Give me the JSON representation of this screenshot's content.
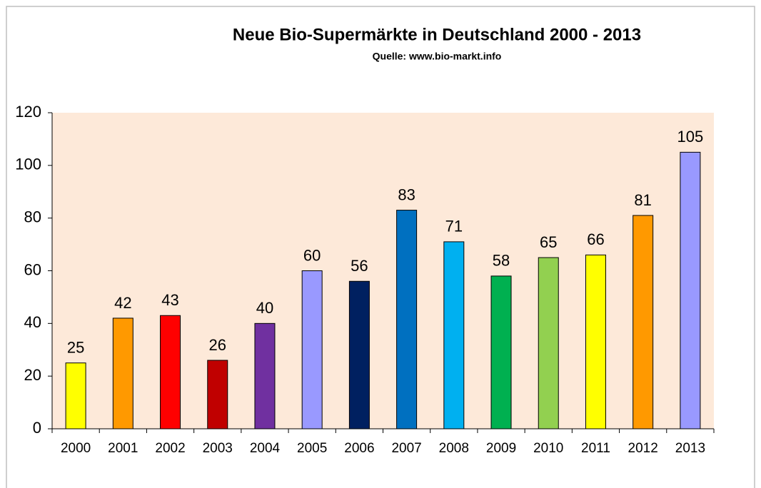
{
  "chart_data": {
    "type": "bar",
    "title": "Neue Bio-Supermärkte in Deutschland 2000 - 2013",
    "subtitle": "Quelle: www.bio-markt.info",
    "categories": [
      "2000",
      "2001",
      "2002",
      "2003",
      "2004",
      "2005",
      "2006",
      "2007",
      "2008",
      "2009",
      "2010",
      "2011",
      "2012",
      "2013"
    ],
    "values": [
      25,
      42,
      43,
      26,
      40,
      60,
      56,
      83,
      71,
      58,
      65,
      66,
      81,
      105
    ],
    "colors": [
      "#ffff00",
      "#ff9900",
      "#ff0000",
      "#c00000",
      "#7030a0",
      "#9999ff",
      "#002060",
      "#0070c0",
      "#00b0f0",
      "#00b050",
      "#92d050",
      "#ffff00",
      "#ff9900",
      "#9999ff"
    ],
    "ylim": [
      0,
      120
    ],
    "yticks": [
      0,
      20,
      40,
      60,
      80,
      100,
      120
    ],
    "grid": false,
    "plot_background": "#fde9d9"
  }
}
